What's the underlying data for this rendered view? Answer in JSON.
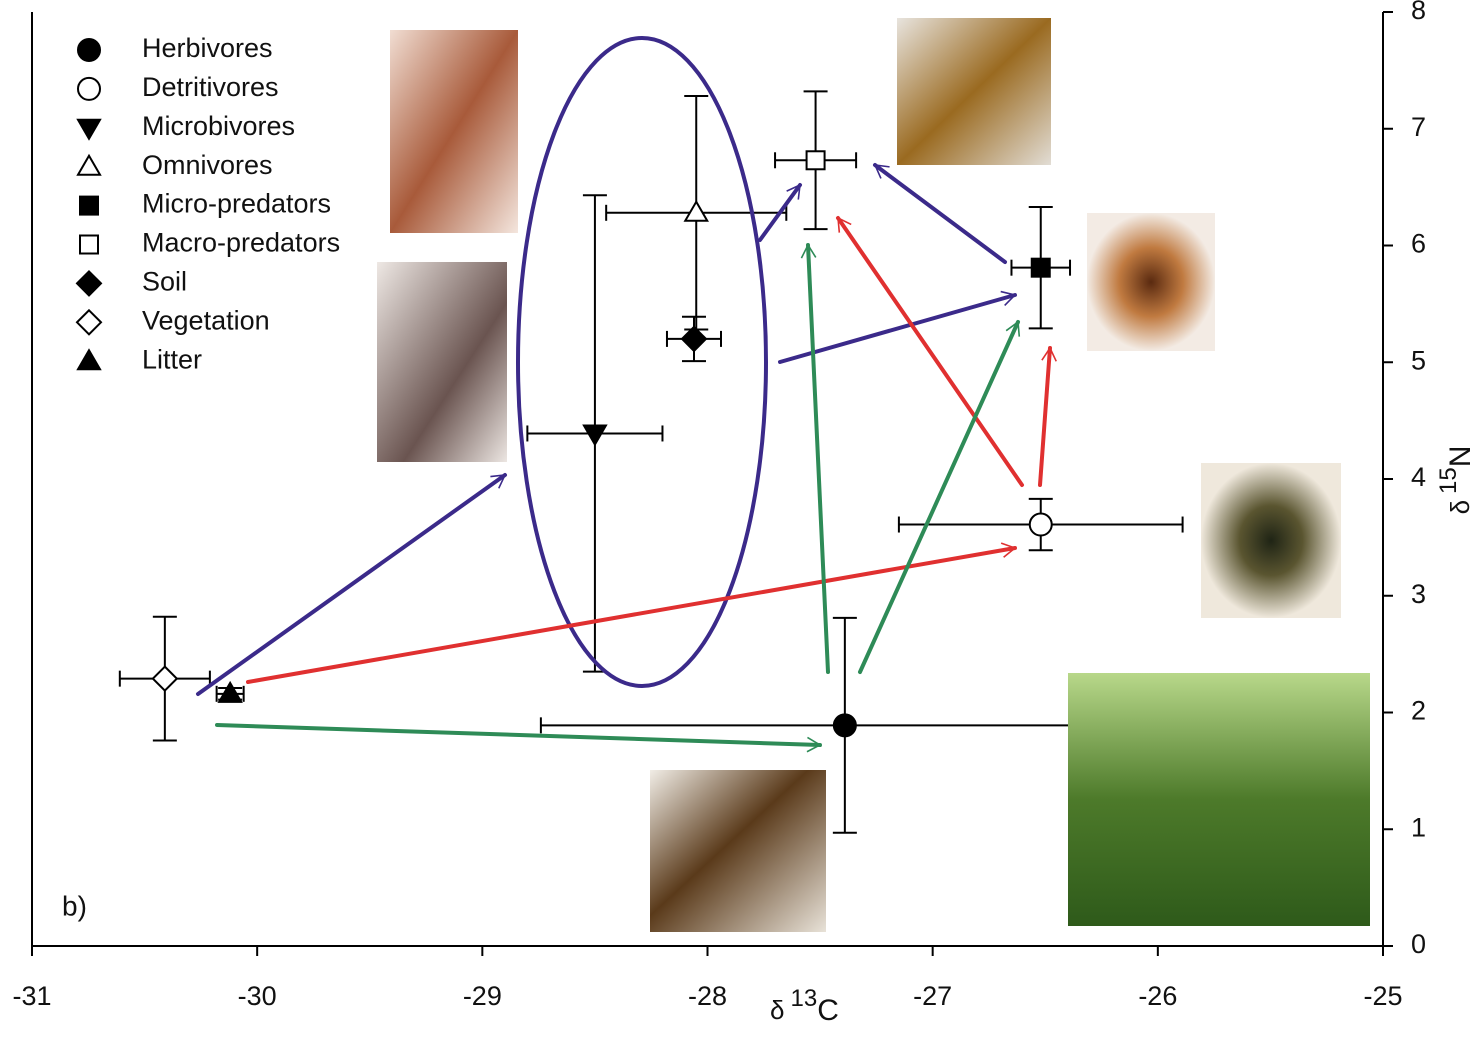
{
  "chart_data": {
    "type": "scatter",
    "panel_label": "b)",
    "xlabel": {
      "prefix": "δ",
      "sup": "13",
      "main": "C"
    },
    "ylabel": {
      "prefix": "δ",
      "sup": "15",
      "main": "N"
    },
    "xlim": [
      -31,
      -25
    ],
    "xticks": [
      -31,
      -30,
      -29,
      -28,
      -27,
      -26,
      -25
    ],
    "ylim": [
      0,
      8
    ],
    "yticks": [
      0,
      1,
      2,
      3,
      4,
      5,
      6,
      7,
      8
    ],
    "series": [
      {
        "name": "Herbivores",
        "marker": "circle",
        "filled": true,
        "x": [
          -27.39
        ],
        "y": [
          1.89
        ],
        "xerr": [
          1.35
        ],
        "yerr": [
          0.92
        ]
      },
      {
        "name": "Detritivores",
        "marker": "circle",
        "filled": false,
        "x": [
          -26.52
        ],
        "y": [
          3.61
        ],
        "xerr": [
          0.63
        ],
        "yerr": [
          0.22
        ]
      },
      {
        "name": "Microbivores",
        "marker": "triangle-down",
        "filled": true,
        "x": [
          -28.5
        ],
        "y": [
          4.39
        ],
        "xerr": [
          0.3
        ],
        "yerr": [
          2.04
        ]
      },
      {
        "name": "Omnivores",
        "marker": "triangle-up",
        "filled": false,
        "x": [
          -28.05
        ],
        "y": [
          6.28
        ],
        "xerr": [
          0.4
        ],
        "yerr": [
          1.0
        ]
      },
      {
        "name": "Micro-predators",
        "marker": "square",
        "filled": true,
        "x": [
          -26.52
        ],
        "y": [
          5.81
        ],
        "xerr": [
          0.13
        ],
        "yerr": [
          0.52
        ]
      },
      {
        "name": "Macro-predators",
        "marker": "square",
        "filled": false,
        "x": [
          -27.52
        ],
        "y": [
          6.73
        ],
        "xerr": [
          0.18
        ],
        "yerr": [
          0.59
        ]
      },
      {
        "name": "Soil",
        "marker": "diamond",
        "filled": true,
        "x": [
          -28.06
        ],
        "y": [
          5.2
        ],
        "xerr": [
          0.12
        ],
        "yerr": [
          0.19
        ]
      },
      {
        "name": "Vegetation",
        "marker": "diamond",
        "filled": false,
        "x": [
          -30.41
        ],
        "y": [
          2.29
        ],
        "xerr": [
          0.2
        ],
        "yerr": [
          0.53
        ]
      },
      {
        "name": "Litter",
        "marker": "triangle-up",
        "filled": true,
        "x": [
          -30.12
        ],
        "y": [
          2.16
        ],
        "xerr": [
          0.06
        ],
        "yerr": [
          0.05
        ]
      }
    ]
  }
}
